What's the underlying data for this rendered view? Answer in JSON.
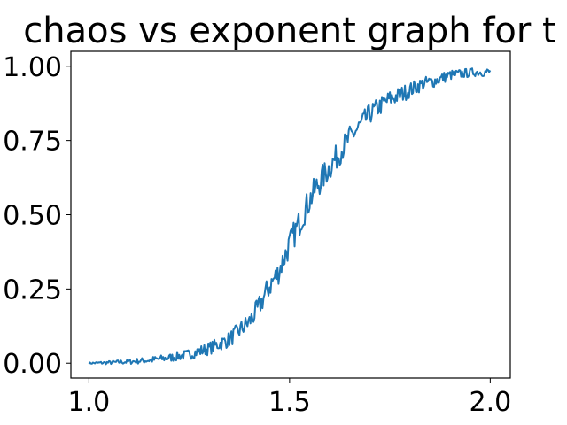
{
  "chart_data": {
    "type": "line",
    "title": "chaos vs exponent graph for t",
    "xlabel": "",
    "ylabel": "",
    "xlim": [
      0.955,
      2.05
    ],
    "ylim": [
      -0.05,
      1.05
    ],
    "x_ticks": [
      1.0,
      1.5,
      2.0
    ],
    "y_ticks": [
      0.0,
      0.25,
      0.5,
      0.75,
      1.0
    ],
    "x_tick_labels": [
      "1.0",
      "1.5",
      "2.0"
    ],
    "y_tick_labels": [
      "0.00",
      "0.25",
      "0.50",
      "0.75",
      "1.00"
    ],
    "grid": false,
    "legend": "none",
    "series": [
      {
        "color": "#1f77b4",
        "x": [
          1.0,
          1.05,
          1.1,
          1.15,
          1.2,
          1.25,
          1.3,
          1.35,
          1.4,
          1.42,
          1.45,
          1.47,
          1.5,
          1.52,
          1.55,
          1.57,
          1.6,
          1.62,
          1.65,
          1.67,
          1.7,
          1.72,
          1.75,
          1.77,
          1.8,
          1.83,
          1.86,
          1.9,
          1.93,
          1.96,
          2.0
        ],
        "values": [
          0.0,
          0.002,
          0.005,
          0.01,
          0.018,
          0.03,
          0.05,
          0.08,
          0.14,
          0.18,
          0.26,
          0.3,
          0.4,
          0.46,
          0.55,
          0.6,
          0.66,
          0.7,
          0.76,
          0.79,
          0.84,
          0.86,
          0.89,
          0.9,
          0.92,
          0.94,
          0.95,
          0.97,
          0.975,
          0.98,
          0.98
        ]
      }
    ]
  }
}
